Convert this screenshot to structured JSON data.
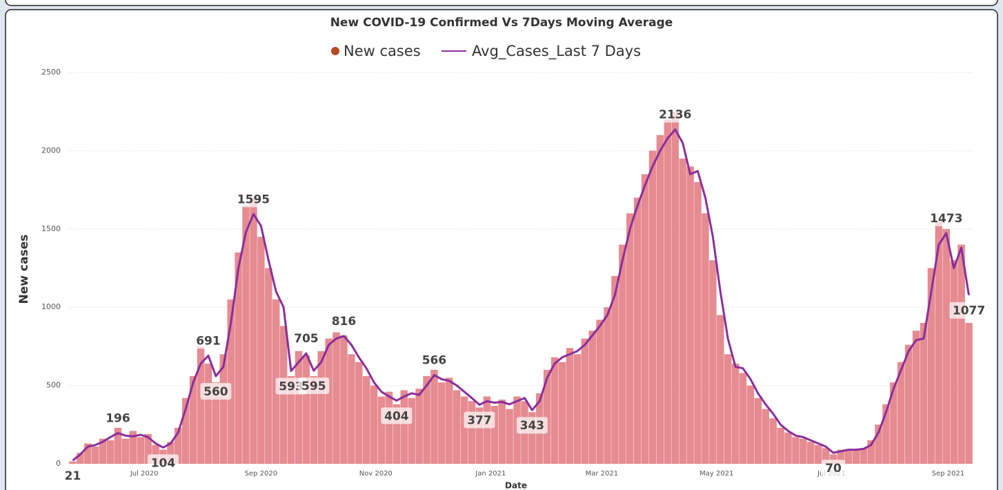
{
  "chart_data": {
    "type": "combo",
    "title": "New COVID-19 Confirmed Vs 7Days Moving Average",
    "x_label": "Date",
    "y_label": "New cases",
    "x": [
      0,
      4,
      8,
      12,
      16,
      20,
      24,
      28,
      32,
      36,
      40,
      44,
      48,
      52,
      56,
      60,
      64,
      68,
      72,
      76,
      80,
      84,
      88,
      92,
      96,
      100,
      104,
      108,
      112,
      116,
      120,
      124,
      128,
      132,
      136,
      140,
      144,
      148,
      152,
      156,
      160,
      164,
      168,
      172,
      176,
      180,
      184,
      188,
      192,
      196,
      200,
      204,
      208,
      212,
      216,
      220,
      224,
      228,
      232,
      236,
      240,
      244,
      248,
      252,
      256,
      260,
      264,
      268,
      272,
      276,
      280,
      284,
      288,
      292,
      296,
      300,
      304,
      308,
      312,
      316,
      320,
      324,
      328,
      332,
      336,
      340,
      344,
      348,
      352,
      356,
      360,
      364,
      368,
      372,
      376,
      380,
      384,
      388,
      392,
      396,
      400,
      404,
      408,
      412,
      416,
      420,
      424,
      428,
      432,
      436,
      440,
      444,
      448,
      452,
      456,
      460,
      464,
      468,
      472,
      476
    ],
    "xlim": [
      -2,
      478
    ],
    "xticks": [
      {
        "value": 38,
        "label": "Jul 2020"
      },
      {
        "value": 100,
        "label": "Sep 2020"
      },
      {
        "value": 161,
        "label": "Nov 2020"
      },
      {
        "value": 222,
        "label": "Jan 2021"
      },
      {
        "value": 281,
        "label": "Mar 2021"
      },
      {
        "value": 342,
        "label": "May 2021"
      },
      {
        "value": 403,
        "label": "Jul 2021"
      },
      {
        "value": 465,
        "label": "Sep 2021"
      }
    ],
    "ylim": [
      0,
      2500
    ],
    "yticks": [
      0,
      500,
      1000,
      1500,
      2000,
      2500
    ],
    "grid": true,
    "series": [
      {
        "name": "New cases",
        "type": "bar",
        "color": "#e58b91",
        "marker_color": "#b84a22",
        "values": [
          15,
          70,
          130,
          110,
          160,
          150,
          230,
          160,
          210,
          170,
          190,
          120,
          90,
          140,
          230,
          420,
          560,
          750,
          640,
          520,
          700,
          1050,
          1350,
          1650,
          1700,
          1450,
          1250,
          1050,
          880,
          560,
          720,
          690,
          560,
          720,
          800,
          840,
          820,
          700,
          650,
          560,
          500,
          430,
          460,
          380,
          470,
          420,
          480,
          560,
          600,
          520,
          550,
          470,
          430,
          400,
          360,
          430,
          370,
          410,
          350,
          430,
          400,
          330,
          450,
          600,
          680,
          650,
          740,
          700,
          800,
          850,
          920,
          1000,
          1200,
          1400,
          1600,
          1700,
          1850,
          2000,
          2100,
          2200,
          2250,
          1950,
          1900,
          1800,
          1600,
          1300,
          950,
          700,
          640,
          580,
          500,
          420,
          350,
          290,
          230,
          200,
          170,
          160,
          140,
          120,
          100,
          60,
          90,
          85,
          95,
          100,
          150,
          250,
          380,
          520,
          650,
          760,
          850,
          900,
          1250,
          1550,
          1500,
          1300,
          1400,
          900
        ]
      },
      {
        "name": "Avg_Cases_Last 7 Days",
        "type": "line",
        "color": "#8a2d9c",
        "values": [
          21,
          60,
          110,
          120,
          140,
          170,
          196,
          180,
          175,
          185,
          170,
          130,
          104,
          130,
          200,
          350,
          520,
          640,
          691,
          560,
          620,
          900,
          1250,
          1480,
          1595,
          1520,
          1300,
          1100,
          1000,
          593,
          650,
          705,
          595,
          650,
          760,
          800,
          816,
          760,
          680,
          610,
          520,
          460,
          430,
          404,
          430,
          450,
          440,
          500,
          566,
          540,
          530,
          500,
          460,
          420,
          377,
          400,
          390,
          395,
          380,
          400,
          420,
          343,
          400,
          550,
          640,
          680,
          700,
          720,
          760,
          820,
          880,
          950,
          1080,
          1300,
          1500,
          1650,
          1780,
          1900,
          2000,
          2080,
          2136,
          2050,
          1850,
          1870,
          1700,
          1450,
          1100,
          800,
          620,
          610,
          540,
          450,
          380,
          320,
          250,
          210,
          180,
          170,
          150,
          130,
          110,
          70,
          80,
          90,
          90,
          95,
          120,
          200,
          330,
          480,
          600,
          720,
          790,
          800,
          1100,
          1400,
          1473,
          1250,
          1380,
          1077
        ],
        "value_labels": [
          "21",
          null,
          null,
          null,
          null,
          null,
          "196",
          null,
          null,
          null,
          null,
          null,
          "104",
          null,
          null,
          null,
          null,
          null,
          "691",
          "560",
          null,
          null,
          null,
          null,
          "1595",
          null,
          null,
          null,
          null,
          "593",
          null,
          "705",
          "595",
          null,
          null,
          null,
          "816",
          null,
          null,
          null,
          null,
          null,
          null,
          "404",
          null,
          null,
          null,
          null,
          "566",
          null,
          null,
          null,
          null,
          null,
          "377",
          null,
          null,
          null,
          null,
          null,
          null,
          "343",
          null,
          null,
          null,
          null,
          null,
          null,
          null,
          null,
          null,
          null,
          null,
          null,
          null,
          null,
          null,
          null,
          null,
          null,
          "2136",
          null,
          null,
          null,
          null,
          null,
          null,
          null,
          null,
          null,
          null,
          null,
          null,
          null,
          null,
          null,
          null,
          null,
          null,
          null,
          null,
          "70",
          null,
          null,
          null,
          null,
          null,
          null,
          null,
          null,
          null,
          null,
          null,
          null,
          null,
          null,
          "1473",
          null,
          null,
          "1077"
        ]
      }
    ]
  }
}
